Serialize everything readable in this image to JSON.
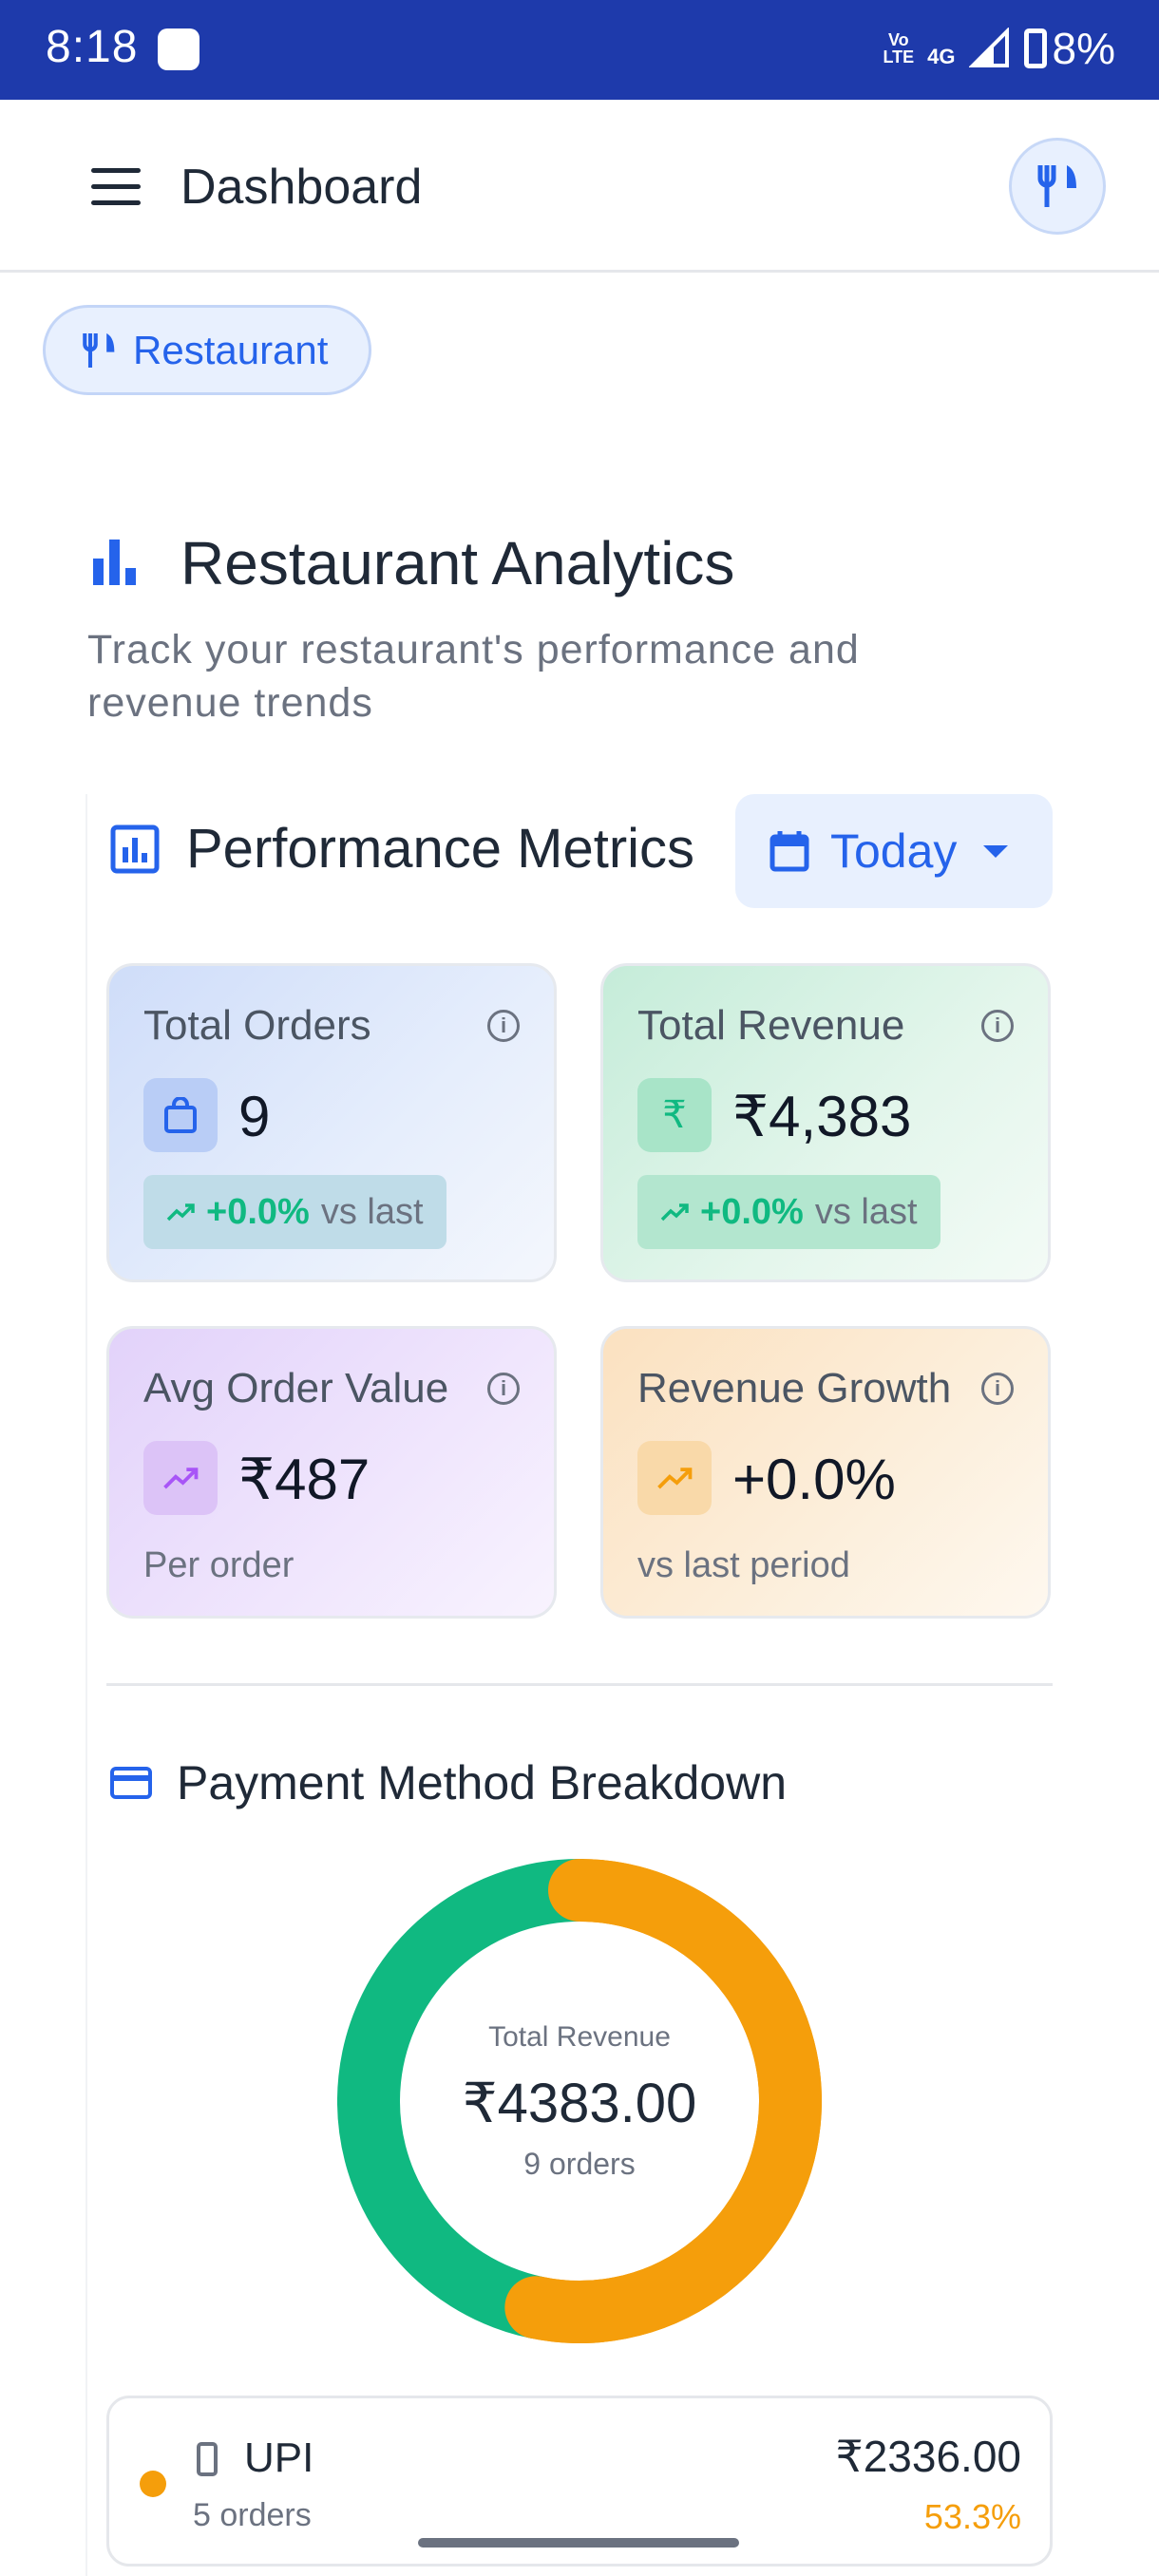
{
  "status_bar": {
    "time": "8:18",
    "volte_top": "Vo",
    "volte_bottom": "LTE",
    "network": "4G",
    "battery": "8%"
  },
  "app_bar": {
    "title": "Dashboard",
    "menu_icon": "hamburger-menu-icon",
    "avatar_icon": "utensils-icon"
  },
  "chip": {
    "label": "Restaurant",
    "icon": "utensils-icon"
  },
  "header": {
    "title": "Restaurant Analytics",
    "subtitle": "Track your restaurant's performance and revenue trends",
    "icon": "bar-chart-icon"
  },
  "performance": {
    "title": "Performance Metrics",
    "icon": "analytics-icon",
    "period_label": "Today",
    "period_icon": "calendar-icon"
  },
  "metrics": {
    "total_orders": {
      "title": "Total Orders",
      "value": "9",
      "trend": "+0.0%",
      "trend_suffix": "vs last",
      "icon": "shopping-bag-icon"
    },
    "total_revenue": {
      "title": "Total Revenue",
      "value": "₹4,383",
      "trend": "+0.0%",
      "trend_suffix": "vs last",
      "icon": "rupee-icon",
      "icon_glyph": "₹"
    },
    "avg_order": {
      "title": "Avg Order Value",
      "value": "₹487",
      "note": "Per order",
      "icon": "trending-up-icon"
    },
    "revenue_growth": {
      "title": "Revenue Growth",
      "value": "+0.0%",
      "note": "vs last period",
      "icon": "trending-up-icon"
    },
    "info_glyph": "i"
  },
  "payment": {
    "title": "Payment Method Breakdown",
    "icon": "credit-card-icon",
    "center_label": "Total Revenue",
    "center_value": "₹4383.00",
    "center_orders": "9 orders",
    "methods": [
      {
        "name": "UPI",
        "orders": "5 orders",
        "amount": "₹2336.00",
        "percent": "53.3%",
        "color": "#f59e0b",
        "icon": "smartphone-icon"
      }
    ]
  },
  "chart_data": {
    "type": "pie",
    "variant": "donut",
    "slices": [
      {
        "label": "UPI",
        "value": 2336.0,
        "percent": 53.3,
        "color": "#f59e0b"
      },
      {
        "label": "",
        "value": 2047.0,
        "percent": 46.7,
        "color": "#10b981"
      }
    ],
    "total": 4383.0
  }
}
